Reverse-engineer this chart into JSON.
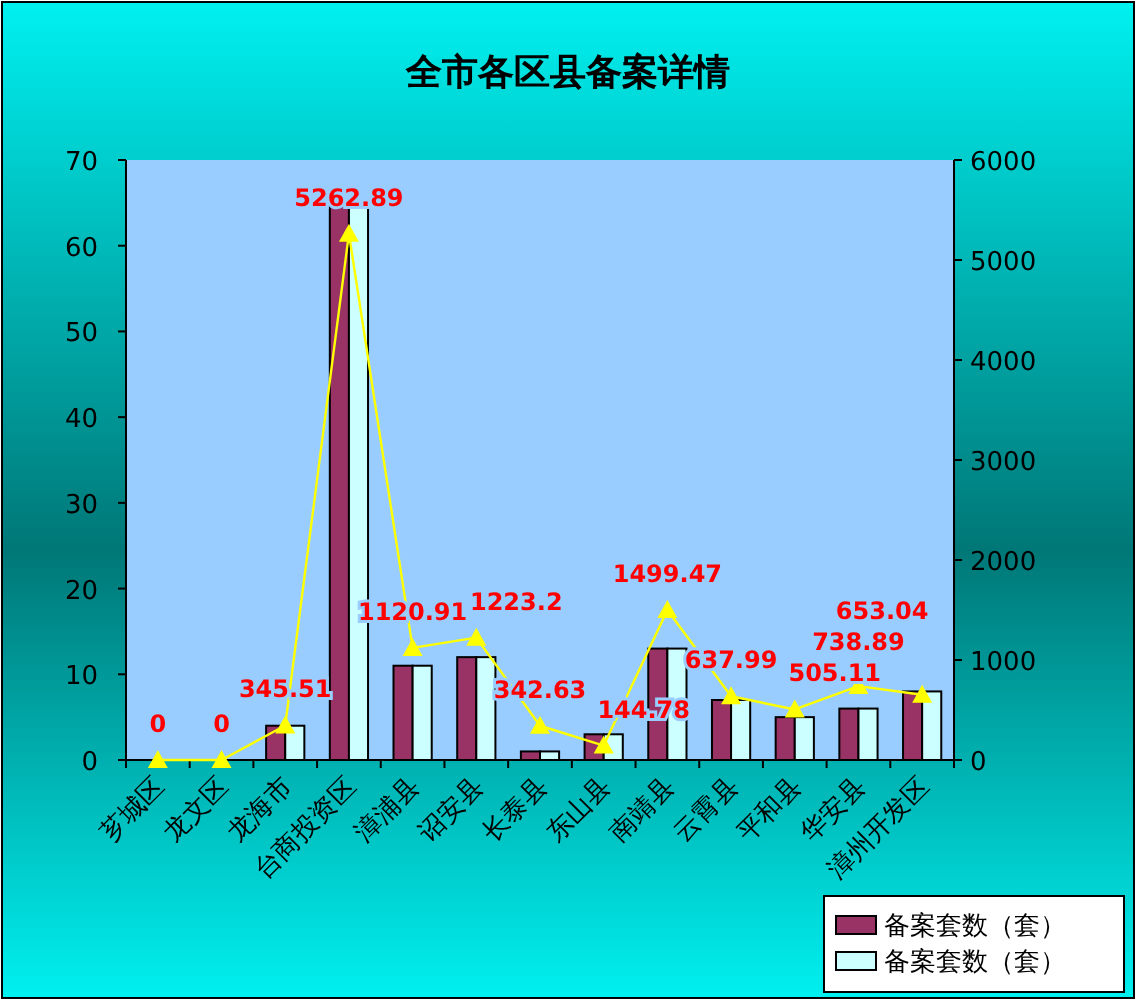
{
  "chart_data": {
    "type": "bar",
    "title": "全市各区县备案详情",
    "categories": [
      "芗城区",
      "龙文区",
      "龙海市",
      "台商投资区",
      "漳浦县",
      "诏安县",
      "长泰县",
      "东山县",
      "南靖县",
      "云霄县",
      "平和县",
      "华安县",
      "漳州开发区"
    ],
    "series": [
      {
        "name": "备案套数（套）",
        "color": "#993366",
        "values": [
          0,
          0,
          4,
          65,
          11,
          12,
          1,
          3,
          13,
          7,
          5,
          6,
          8
        ]
      },
      {
        "name": "备案套数（套）",
        "color": "#ccffff",
        "values": [
          0,
          0,
          4,
          65,
          11,
          12,
          1,
          3,
          13,
          7,
          5,
          6,
          8
        ]
      },
      {
        "type": "line",
        "axis": "y2",
        "color": "#ffff00",
        "marker": "triangle",
        "values": [
          0,
          0,
          345.51,
          5262.89,
          1120.91,
          1223.2,
          342.63,
          144.78,
          1499.47,
          637.99,
          505.11,
          738.89,
          653.04
        ],
        "value_labels": [
          "0",
          "0",
          "345.51",
          "5262.89",
          "1120.91",
          "1223.2",
          "342.63",
          "144.78",
          "1499.47",
          "637.99",
          "505.11",
          "738.89",
          "653.04"
        ]
      }
    ],
    "ylim": [
      0,
      70
    ],
    "yticks": [
      0,
      10,
      20,
      30,
      40,
      50,
      60,
      70
    ],
    "y2lim": [
      0,
      6000
    ],
    "y2ticks": [
      0,
      1000,
      2000,
      3000,
      4000,
      5000,
      6000
    ],
    "legend": "bottom right",
    "grid": false
  }
}
